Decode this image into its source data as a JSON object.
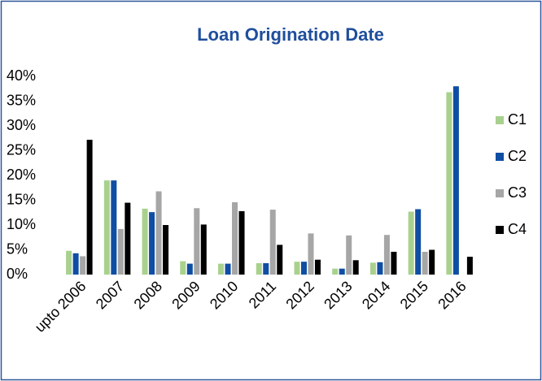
{
  "chart_data": {
    "type": "bar",
    "title": "Loan Origination Date",
    "categories": [
      "upto 2006",
      "2007",
      "2008",
      "2009",
      "2010",
      "2011",
      "2012",
      "2013",
      "2014",
      "2015",
      "2016"
    ],
    "series": [
      {
        "name": "C1",
        "color": "#a9d18e",
        "values": [
          4.8,
          19,
          13.3,
          2.7,
          2.2,
          2.3,
          2.6,
          1.2,
          2.4,
          12.7,
          36.8
        ]
      },
      {
        "name": "C2",
        "color": "#0f4ea3",
        "values": [
          4.3,
          19,
          12.6,
          2.2,
          2.2,
          2.3,
          2.6,
          1.2,
          2.5,
          13.2,
          38
        ]
      },
      {
        "name": "C3",
        "color": "#a6a6a6",
        "values": [
          3.7,
          9.2,
          16.8,
          13.4,
          14.6,
          13.1,
          8.3,
          7.9,
          8.0,
          4.6,
          null
        ]
      },
      {
        "name": "C4",
        "color": "#000000",
        "values": [
          27.2,
          14.5,
          10,
          10.1,
          12.8,
          6,
          3.0,
          2.9,
          4.6,
          5.0,
          3.6
        ]
      }
    ],
    "ylim": [
      0,
      40
    ],
    "yticks": [
      {
        "value": 0,
        "label": "0%"
      },
      {
        "value": 5,
        "label": "5%"
      },
      {
        "value": 10,
        "label": "10%"
      },
      {
        "value": 15,
        "label": "15%"
      },
      {
        "value": 20,
        "label": "20%"
      },
      {
        "value": 25,
        "label": "25%"
      },
      {
        "value": 30,
        "label": "30%"
      },
      {
        "value": 35,
        "label": "35%"
      },
      {
        "value": 40,
        "label": "40%"
      }
    ],
    "legend": "right"
  }
}
